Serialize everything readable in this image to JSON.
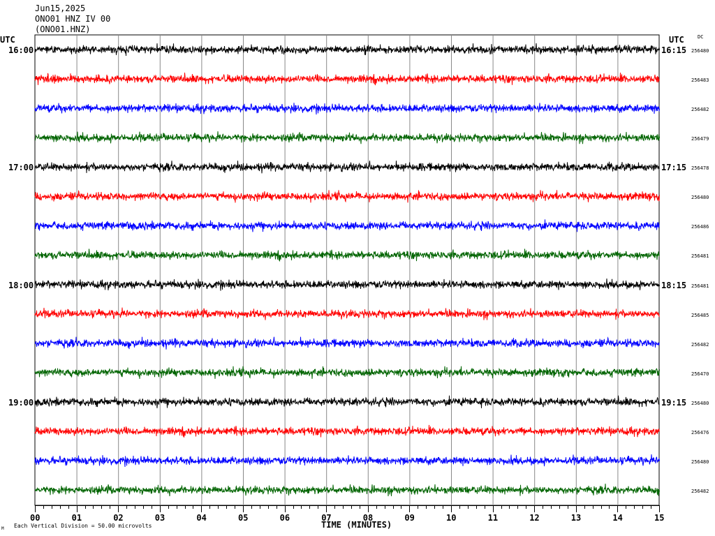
{
  "header": {
    "date": "Jun15,2025",
    "station_line": "ONO01 HNZ IV 00",
    "channel_line": "(ONO01.HNZ)"
  },
  "left_axis": {
    "title": "UTC",
    "hour_labels": [
      "16:00",
      "17:00",
      "18:00",
      "19:00"
    ]
  },
  "right_axis": {
    "title": "UTC",
    "hour_labels": [
      "16:15",
      "17:15",
      "18:15",
      "19:15"
    ],
    "dc_title": "DC"
  },
  "footer": {
    "mark": "M",
    "scale_note": "Each Vertical Division =   50.00 microvolts"
  },
  "chart_data": {
    "type": "line",
    "xlabel": "TIME (MINUTES)",
    "x_ticks": [
      "00",
      "01",
      "02",
      "03",
      "04",
      "05",
      "06",
      "07",
      "08",
      "09",
      "10",
      "11",
      "12",
      "13",
      "14",
      "15"
    ],
    "xlim": [
      0,
      15
    ],
    "grid": true,
    "rows_per_hour": 4,
    "trace_colors": [
      "#000000",
      "#ff0000",
      "#0000ff",
      "#006400"
    ],
    "dc_offsets": [
      "256480",
      "256483",
      "256482",
      "256479",
      "256478",
      "256480",
      "256486",
      "256481",
      "256481",
      "256485",
      "256482",
      "256470",
      "256480",
      "256476",
      "256480",
      "256482"
    ]
  }
}
